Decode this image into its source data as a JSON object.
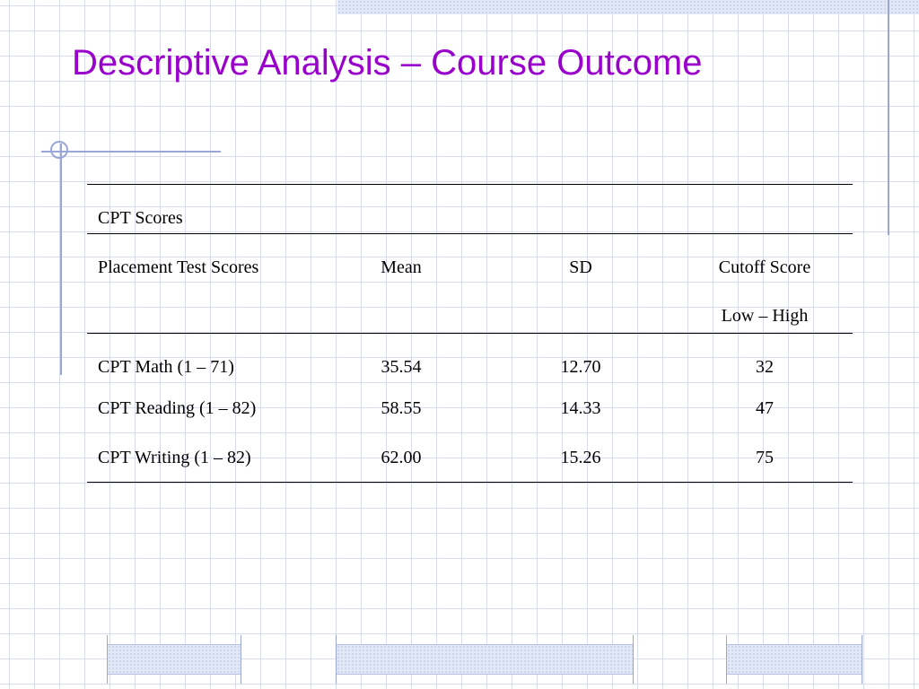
{
  "slide": {
    "title": "Descriptive Analysis – Course Outcome"
  },
  "table": {
    "group_header": "CPT Scores",
    "columns": [
      "Placement Test Scores",
      "Mean",
      "SD",
      "Cutoff Score"
    ],
    "cutoff_subheader": "Low – High",
    "rows": [
      {
        "name": "CPT Math (1 – 71)",
        "mean": "35.54",
        "sd": "12.70",
        "cutoff": "32"
      },
      {
        "name": "CPT Reading (1 – 82)",
        "mean": "58.55",
        "sd": "14.33",
        "cutoff": "47"
      },
      {
        "name": "CPT Writing (1 – 82)",
        "mean": "62.00",
        "sd": "15.26",
        "cutoff": "75"
      }
    ]
  }
}
